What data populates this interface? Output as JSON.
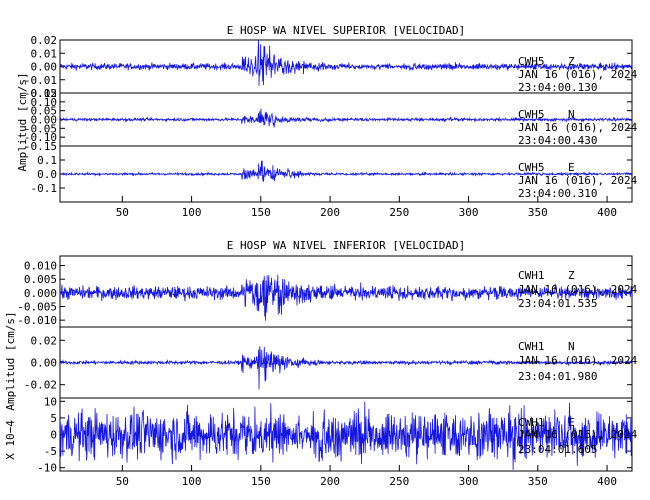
{
  "colors": {
    "trace": "#1515e0",
    "axis": "#000000",
    "background": "#ffffff"
  },
  "chart_data": [
    {
      "type": "line",
      "title": "E HOSP WA NIVEL SUPERIOR [VELOCIDAD]",
      "ylabel": "Amplitud [cm/s]",
      "ylabel_prefix": "",
      "xlim": [
        5,
        418
      ],
      "xticks": [
        50,
        100,
        150,
        200,
        250,
        300,
        350,
        400
      ],
      "show_xticklabels": true,
      "traces": [
        {
          "station": "CWH5",
          "component": "Z",
          "date": "JAN 16 (016), 2024",
          "time": "23:04:00.130",
          "ylim": [
            -0.02,
            0.02
          ],
          "yticks": [
            "0.02",
            "0.01",
            "0.00",
            "-0.01",
            "-0.02"
          ],
          "ytick_values": [
            0.02,
            0.01,
            0.0,
            -0.01,
            -0.02
          ],
          "noise": 0.0012,
          "p_arrival": 136,
          "s_arrival": 148,
          "p_amp": 0.008,
          "s_amp": 0.016,
          "decay": 18
        },
        {
          "station": "CWH5",
          "component": "N",
          "date": "JAN 16 (016), 2024",
          "time": "23:04:00.430",
          "ylim": [
            -0.15,
            0.15
          ],
          "yticks": [
            "0.15",
            "0.10",
            "0.05",
            "0.00",
            "-0.05",
            "-0.10",
            "-0.15"
          ],
          "ytick_values": [
            0.15,
            0.1,
            0.05,
            0.0,
            -0.05,
            -0.1,
            -0.15
          ],
          "noise": 0.004,
          "p_arrival": 136,
          "s_arrival": 148,
          "p_amp": 0.025,
          "s_amp": 0.055,
          "decay": 16
        },
        {
          "station": "CWH5",
          "component": "E",
          "date": "JAN 16 (016), 2024",
          "time": "23:04:00.310",
          "ylim": [
            -0.2,
            0.2
          ],
          "yticks": [
            "0.1",
            "0.0",
            "-0.1"
          ],
          "ytick_values": [
            0.1,
            0.0,
            -0.1
          ],
          "noise": 0.004,
          "p_arrival": 136,
          "s_arrival": 148,
          "p_amp": 0.04,
          "s_amp": 0.13,
          "decay": 14
        }
      ]
    },
    {
      "type": "line",
      "title": "E HOSP WA NIVEL INFERIOR [VELOCIDAD]",
      "ylabel": "Amplitud [cm/s]",
      "ylabel_prefix": "X 10−4",
      "xlim": [
        5,
        418
      ],
      "xticks": [
        50,
        100,
        150,
        200,
        250,
        300,
        350,
        400
      ],
      "show_xticklabels": true,
      "traces": [
        {
          "station": "CWH1",
          "component": "Z",
          "date": "JAN 16 (016), 2024",
          "time": "23:04:01.535",
          "ylim": [
            -0.0125,
            0.0135
          ],
          "yticks": [
            "0.010",
            "0.005",
            "0.000",
            "-0.005",
            "-0.010"
          ],
          "ytick_values": [
            0.01,
            0.005,
            0.0,
            -0.005,
            -0.01
          ],
          "noise": 0.0012,
          "p_arrival": 136,
          "s_arrival": 148,
          "p_amp": 0.006,
          "s_amp": 0.009,
          "decay": 22
        },
        {
          "station": "CWH1",
          "component": "N",
          "date": "JAN 16 (016), 2024",
          "time": "23:04:01.980",
          "ylim": [
            -0.032,
            0.032
          ],
          "yticks": [
            "0.02",
            "0.00",
            "-0.02"
          ],
          "ytick_values": [
            0.02,
            0.0,
            -0.02
          ],
          "noise": 0.0008,
          "p_arrival": 136,
          "s_arrival": 148,
          "p_amp": 0.007,
          "s_amp": 0.024,
          "decay": 14
        },
        {
          "station": "CWH1",
          "component": "E",
          "date": "JAN 16 (016), 2024",
          "time": "23:04:01.605",
          "ylim": [
            -11,
            11
          ],
          "yticks": [
            "10",
            "5",
            "0",
            "-5",
            "-10"
          ],
          "ytick_values": [
            10,
            5,
            0,
            -5,
            -10
          ],
          "noise": 3.6,
          "p_arrival": 136,
          "s_arrival": 148,
          "p_amp": 1.5,
          "s_amp": 3.0,
          "decay": 30
        }
      ]
    }
  ]
}
